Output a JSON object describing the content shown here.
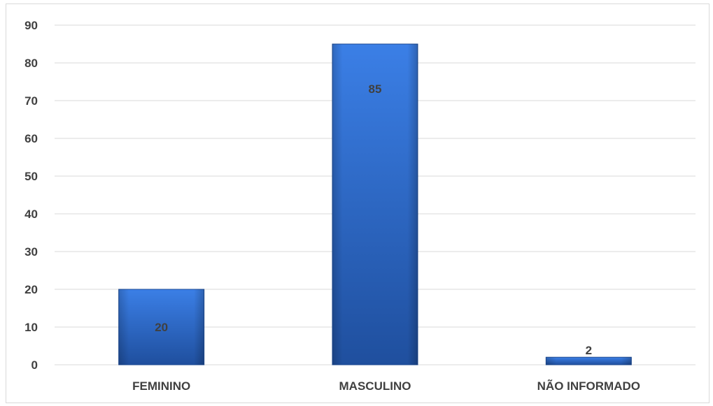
{
  "chart_data": {
    "type": "bar",
    "categories": [
      "FEMININO",
      "MASCULINO",
      "NÃO INFORMADO"
    ],
    "values": [
      20,
      85,
      2
    ],
    "data_labels": [
      "20",
      "85",
      "2"
    ],
    "title": "",
    "xlabel": "",
    "ylabel": "",
    "ylim": [
      0,
      90
    ],
    "yticks": [
      0,
      10,
      20,
      30,
      40,
      50,
      60,
      70,
      80,
      90
    ],
    "ytick_labels": [
      "0",
      "10",
      "20",
      "30",
      "40",
      "50",
      "60",
      "70",
      "80",
      "90"
    ],
    "grid": true,
    "legend": "none",
    "colors": {
      "bar_top": "#3b7fe6",
      "bar_bottom": "#1f4f9e",
      "bar_edge": "#1d4a92",
      "gridline": "#d9d9d9",
      "text": "#404040"
    }
  }
}
